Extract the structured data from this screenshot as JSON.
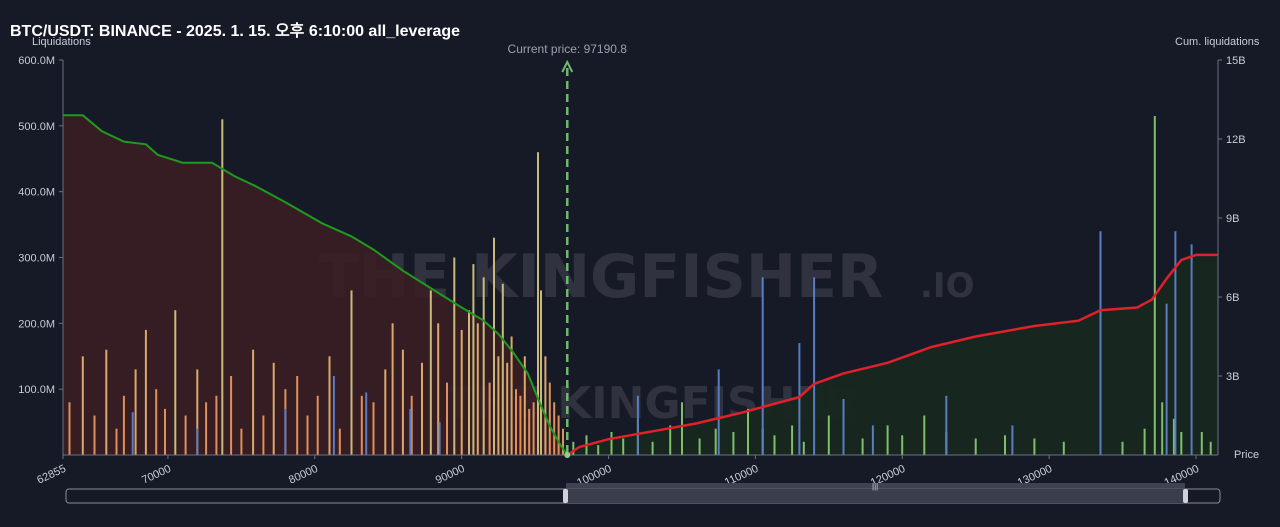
{
  "header": {
    "title": "BTC/USDT: BINANCE - 2025. 1. 15. 오후 6:10:00 all_leverage"
  },
  "watermark": {
    "text": "THE KINGFISHER",
    "suffix": ".IO"
  },
  "colors": {
    "background": "#161a26",
    "long_cum_line": "#1f9a1f",
    "short_cum_line": "#e0212a",
    "long_area": "#3a1e24",
    "short_area": "#17281f",
    "current_price_line": "#6fb86f"
  },
  "chart_data": {
    "type": "bar",
    "title": "",
    "ylabel": "Liquidations",
    "y2label": "Cum. liquidations",
    "xlabel": "Price",
    "current_price_label": "Current price: 97190.8",
    "current_price": 97190.8,
    "xlim": [
      62855,
      141500
    ],
    "ylim": [
      0,
      600000000
    ],
    "y2lim": [
      0,
      15000000000
    ],
    "x_ticks": [
      "62855",
      "70000",
      "80000",
      "90000",
      "100000",
      "110000",
      "120000",
      "130000",
      "140000"
    ],
    "x_tick_values": [
      62855,
      70000,
      80000,
      90000,
      100000,
      110000,
      120000,
      130000,
      140000
    ],
    "y_ticks": [
      "100.0M",
      "200.0M",
      "300.0M",
      "400.0M",
      "500.0M",
      "600.0M"
    ],
    "y_tick_values": [
      100000000,
      200000000,
      300000000,
      400000000,
      500000000,
      600000000
    ],
    "y2_ticks": [
      "3B",
      "6B",
      "9B",
      "12B",
      "15B"
    ],
    "y2_tick_values": [
      3000000000,
      6000000000,
      9000000000,
      12000000000,
      15000000000
    ],
    "grid": false,
    "series": [
      {
        "kind": "cumulative_long",
        "points": [
          [
            62855,
            12.9
          ],
          [
            64200,
            12.9
          ],
          [
            65500,
            12.3
          ],
          [
            67000,
            11.9
          ],
          [
            68500,
            11.8
          ],
          [
            69300,
            11.4
          ],
          [
            71000,
            11.1
          ],
          [
            73000,
            11.1
          ],
          [
            74500,
            10.6
          ],
          [
            76000,
            10.2
          ],
          [
            78000,
            9.6
          ],
          [
            80500,
            8.8
          ],
          [
            82500,
            8.3
          ],
          [
            84000,
            7.8
          ],
          [
            86000,
            7.0
          ],
          [
            88000,
            6.3
          ],
          [
            90000,
            5.6
          ],
          [
            91500,
            5.1
          ],
          [
            92500,
            4.6
          ],
          [
            93500,
            3.9
          ],
          [
            94500,
            3.1
          ],
          [
            95300,
            2.0
          ],
          [
            96000,
            1.1
          ],
          [
            96700,
            0.4
          ],
          [
            97190,
            0.0
          ]
        ]
      },
      {
        "kind": "cumulative_short",
        "points": [
          [
            97190,
            0.0
          ],
          [
            98000,
            0.3
          ],
          [
            100000,
            0.6
          ],
          [
            103000,
            0.9
          ],
          [
            106000,
            1.2
          ],
          [
            109000,
            1.6
          ],
          [
            111000,
            1.9
          ],
          [
            113000,
            2.2
          ],
          [
            114000,
            2.7
          ],
          [
            116000,
            3.1
          ],
          [
            119000,
            3.5
          ],
          [
            122000,
            4.1
          ],
          [
            125000,
            4.5
          ],
          [
            129000,
            4.9
          ],
          [
            132000,
            5.1
          ],
          [
            133500,
            5.5
          ],
          [
            136000,
            5.6
          ],
          [
            137000,
            5.9
          ],
          [
            138000,
            6.7
          ],
          [
            139000,
            7.4
          ],
          [
            140000,
            7.6
          ],
          [
            141500,
            7.6
          ]
        ]
      }
    ],
    "bars_long": [
      [
        63300,
        80000000
      ],
      [
        64200,
        150000000
      ],
      [
        65000,
        60000000
      ],
      [
        65800,
        160000000
      ],
      [
        66500,
        40000000
      ],
      [
        67000,
        90000000
      ],
      [
        67800,
        130000000
      ],
      [
        68500,
        190000000
      ],
      [
        69200,
        100000000
      ],
      [
        69800,
        70000000
      ],
      [
        70500,
        220000000
      ],
      [
        71200,
        60000000
      ],
      [
        72000,
        130000000
      ],
      [
        72600,
        80000000
      ],
      [
        73300,
        90000000
      ],
      [
        73700,
        510000000
      ],
      [
        74300,
        120000000
      ],
      [
        75000,
        40000000
      ],
      [
        75800,
        160000000
      ],
      [
        76500,
        60000000
      ],
      [
        77200,
        140000000
      ],
      [
        78000,
        100000000
      ],
      [
        78800,
        120000000
      ],
      [
        79500,
        60000000
      ],
      [
        80200,
        90000000
      ],
      [
        81000,
        150000000
      ],
      [
        81700,
        40000000
      ],
      [
        82500,
        250000000
      ],
      [
        83200,
        90000000
      ],
      [
        84000,
        80000000
      ],
      [
        84800,
        130000000
      ],
      [
        85300,
        200000000
      ],
      [
        86000,
        160000000
      ],
      [
        86600,
        90000000
      ],
      [
        87300,
        140000000
      ],
      [
        87900,
        250000000
      ],
      [
        88400,
        200000000
      ],
      [
        89000,
        110000000
      ],
      [
        89500,
        300000000
      ],
      [
        90000,
        190000000
      ],
      [
        90500,
        220000000
      ],
      [
        90800,
        290000000
      ],
      [
        91100,
        200000000
      ],
      [
        91500,
        270000000
      ],
      [
        91900,
        110000000
      ],
      [
        92200,
        330000000
      ],
      [
        92500,
        150000000
      ],
      [
        92800,
        260000000
      ],
      [
        93100,
        140000000
      ],
      [
        93400,
        180000000
      ],
      [
        93700,
        100000000
      ],
      [
        94000,
        90000000
      ],
      [
        94300,
        150000000
      ],
      [
        94600,
        70000000
      ],
      [
        94900,
        80000000
      ],
      [
        95200,
        460000000
      ],
      [
        95400,
        250000000
      ],
      [
        95700,
        150000000
      ],
      [
        96000,
        110000000
      ],
      [
        96300,
        80000000
      ],
      [
        96600,
        60000000
      ],
      [
        96900,
        40000000
      ]
    ],
    "bars_short": [
      [
        97600,
        20000000
      ],
      [
        98500,
        30000000
      ],
      [
        99300,
        15000000
      ],
      [
        100200,
        35000000
      ],
      [
        101000,
        25000000
      ],
      [
        102000,
        55000000
      ],
      [
        103000,
        20000000
      ],
      [
        104200,
        45000000
      ],
      [
        105000,
        80000000
      ],
      [
        106200,
        25000000
      ],
      [
        107300,
        40000000
      ],
      [
        108500,
        35000000
      ],
      [
        109500,
        70000000
      ],
      [
        110500,
        40000000
      ],
      [
        111300,
        30000000
      ],
      [
        112500,
        45000000
      ],
      [
        113300,
        20000000
      ],
      [
        115000,
        60000000
      ],
      [
        117300,
        25000000
      ],
      [
        119000,
        45000000
      ],
      [
        120000,
        30000000
      ],
      [
        121500,
        60000000
      ],
      [
        123000,
        35000000
      ],
      [
        125000,
        25000000
      ],
      [
        127000,
        30000000
      ],
      [
        129000,
        25000000
      ],
      [
        131000,
        20000000
      ],
      [
        133500,
        35000000
      ],
      [
        135000,
        20000000
      ],
      [
        136500,
        40000000
      ],
      [
        137200,
        515000000
      ],
      [
        137700,
        80000000
      ],
      [
        138500,
        55000000
      ],
      [
        139000,
        35000000
      ],
      [
        140400,
        35000000
      ],
      [
        141000,
        20000000
      ]
    ],
    "bars_blue": [
      [
        67600,
        65000000
      ],
      [
        72000,
        40000000
      ],
      [
        78000,
        70000000
      ],
      [
        81300,
        120000000
      ],
      [
        83500,
        95000000
      ],
      [
        86500,
        70000000
      ],
      [
        88500,
        50000000
      ],
      [
        102000,
        90000000
      ],
      [
        107500,
        130000000
      ],
      [
        110500,
        270000000
      ],
      [
        113000,
        170000000
      ],
      [
        114000,
        270000000
      ],
      [
        116000,
        85000000
      ],
      [
        118000,
        45000000
      ],
      [
        123000,
        90000000
      ],
      [
        127500,
        45000000
      ],
      [
        133500,
        340000000
      ],
      [
        138000,
        230000000
      ],
      [
        138600,
        340000000
      ],
      [
        139700,
        320000000
      ]
    ]
  }
}
